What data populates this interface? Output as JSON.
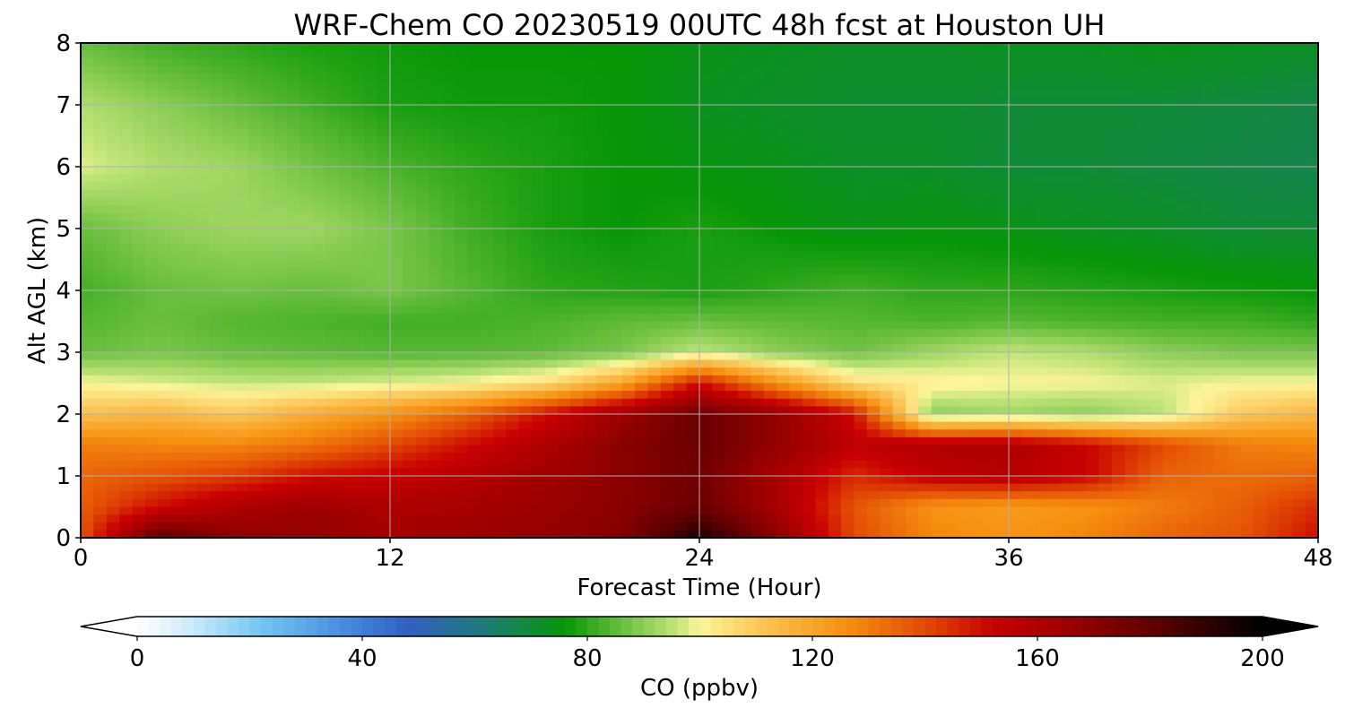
{
  "chart_data": {
    "type": "heatmap",
    "title": "WRF-Chem CO  20230519 00UTC 48h fcst at Houston UH",
    "xlabel": "Forecast Time (Hour)",
    "ylabel": "Alt AGL (km)",
    "xlim": [
      0,
      48
    ],
    "ylim": [
      0,
      8
    ],
    "xticks": [
      0,
      12,
      24,
      36,
      48
    ],
    "yticks": [
      0,
      1,
      2,
      3,
      4,
      5,
      6,
      7,
      8
    ],
    "grid": true,
    "x": [
      0,
      3,
      6,
      9,
      12,
      15,
      18,
      21,
      24,
      27,
      30,
      33,
      36,
      39,
      42,
      45,
      48
    ],
    "y": [
      0,
      0.5,
      1,
      1.5,
      2,
      2.5,
      3,
      3.5,
      4,
      5,
      6,
      7,
      8
    ],
    "z": [
      [
        138,
        182,
        170,
        168,
        163,
        165,
        168,
        172,
        195,
        170,
        140,
        128,
        125,
        128,
        135,
        138,
        150
      ],
      [
        136,
        150,
        160,
        165,
        160,
        162,
        166,
        170,
        178,
        162,
        138,
        125,
        123,
        125,
        130,
        136,
        145
      ],
      [
        134,
        138,
        142,
        150,
        153,
        158,
        164,
        170,
        176,
        162,
        145,
        155,
        158,
        152,
        135,
        133,
        135
      ],
      [
        130,
        128,
        128,
        132,
        140,
        150,
        160,
        170,
        178,
        168,
        155,
        160,
        160,
        152,
        140,
        130,
        128
      ],
      [
        112,
        115,
        110,
        118,
        125,
        135,
        150,
        165,
        178,
        168,
        150,
        90,
        92,
        90,
        95,
        110,
        115
      ],
      [
        100,
        98,
        96,
        96,
        98,
        100,
        105,
        120,
        150,
        125,
        105,
        102,
        100,
        100,
        98,
        100,
        100
      ],
      [
        86,
        88,
        86,
        85,
        84,
        84,
        85,
        88,
        96,
        90,
        87,
        92,
        96,
        94,
        90,
        88,
        88
      ],
      [
        84,
        86,
        84,
        83,
        82,
        82,
        83,
        85,
        86,
        85,
        84,
        83,
        84,
        83,
        82,
        82,
        80
      ],
      [
        82,
        86,
        87,
        86,
        88,
        84,
        80,
        79,
        78,
        80,
        82,
        80,
        80,
        79,
        78,
        77,
        76
      ],
      [
        86,
        90,
        92,
        92,
        88,
        82,
        78,
        76,
        78,
        76,
        74,
        75,
        74,
        73,
        72,
        70,
        70
      ],
      [
        98,
        94,
        92,
        87,
        83,
        80,
        78,
        76,
        75,
        74,
        72,
        72,
        70,
        70,
        69,
        68,
        67
      ],
      [
        94,
        90,
        86,
        82,
        78,
        77,
        77,
        76,
        73,
        72,
        71,
        71,
        70,
        70,
        70,
        69,
        68
      ],
      [
        86,
        82,
        80,
        78,
        77,
        76,
        76,
        76,
        74,
        73,
        72,
        72,
        73,
        73,
        74,
        73,
        72
      ]
    ],
    "colorbar": {
      "label": "CO  (ppbv)",
      "min": 0,
      "max": 200,
      "ticks": [
        0,
        40,
        80,
        120,
        160,
        200
      ],
      "extend": "both",
      "stops": [
        [
          0,
          "#ffffff"
        ],
        [
          10,
          "#c8eafb"
        ],
        [
          22,
          "#74c6f2"
        ],
        [
          36,
          "#4a8fe0"
        ],
        [
          48,
          "#3160c0"
        ],
        [
          62,
          "#1f7b78"
        ],
        [
          76,
          "#069606"
        ],
        [
          84,
          "#56b632"
        ],
        [
          96,
          "#c3e57a"
        ],
        [
          100,
          "#fdf59a"
        ],
        [
          112,
          "#fbc050"
        ],
        [
          126,
          "#f69010"
        ],
        [
          140,
          "#e24a04"
        ],
        [
          152,
          "#c80000"
        ],
        [
          166,
          "#9a0000"
        ],
        [
          182,
          "#5a0000"
        ],
        [
          200,
          "#000000"
        ]
      ]
    }
  }
}
